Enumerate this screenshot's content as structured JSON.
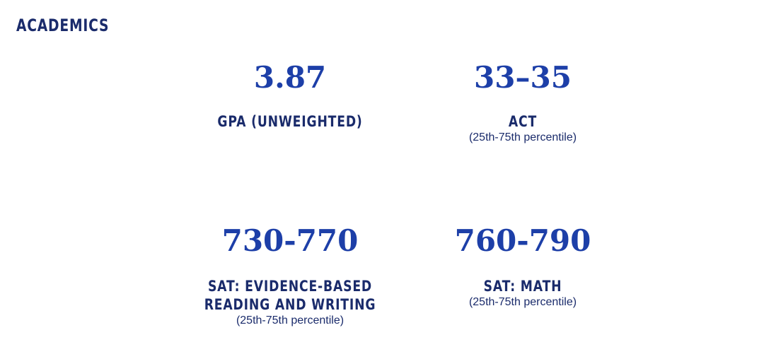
{
  "section": {
    "title": "ACADEMICS"
  },
  "stats": {
    "gpa": {
      "value": "3.87",
      "label": "GPA (UNWEIGHTED)"
    },
    "act": {
      "value": "33–35",
      "label": "ACT",
      "note": "(25th-75th percentile)"
    },
    "sat_rw": {
      "value": "730-770",
      "label": "SAT: EVIDENCE-BASED\nREADING AND WRITING",
      "note": "(25th-75th percentile)"
    },
    "sat_math": {
      "value": "760-790",
      "label": "SAT: MATH",
      "note": "(25th-75th percentile)"
    }
  },
  "colors": {
    "value_blue": "#1d3fa8",
    "label_navy": "#1a2b6b",
    "background": "#ffffff"
  }
}
